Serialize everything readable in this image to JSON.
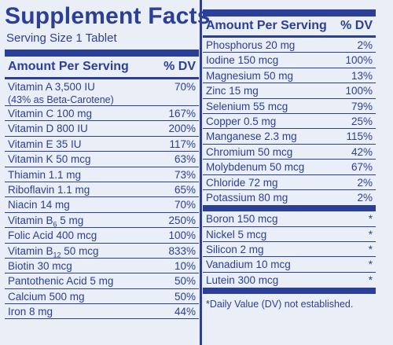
{
  "title": "Supplement Facts",
  "serving": "Serving Size 1 Tablet",
  "header": {
    "amount": "Amount Per Serving",
    "dv": "% DV"
  },
  "left_rows": [
    {
      "name": "Vitamin A 3,500 IU",
      "sub": "(43% as Beta-Carotene)",
      "dv": "70%"
    },
    {
      "name": "Vitamin C 100 mg",
      "dv": "167%"
    },
    {
      "name": "Vitamin D 800 IU",
      "dv": "200%"
    },
    {
      "name": "Vitamin E 35 IU",
      "dv": "117%"
    },
    {
      "name": "Vitamin K 50 mcg",
      "dv": "63%"
    },
    {
      "name": "Thiamin 1.1 mg",
      "dv": "73%"
    },
    {
      "name": "Riboflavin 1.1 mg",
      "dv": "65%"
    },
    {
      "name": "Niacin 14 mg",
      "dv": "70%"
    },
    {
      "name_pre": "Vitamin B",
      "name_sub": "6",
      "name_post": " 5 mg",
      "dv": "250%"
    },
    {
      "name": "Folic Acid 400 mcg",
      "dv": "100%"
    },
    {
      "name_pre": "Vitamin B",
      "name_sub": "12",
      "name_post": " 50 mcg",
      "dv": "833%"
    },
    {
      "name": "Biotin 30 mcg",
      "dv": "10%"
    },
    {
      "name": "Pantothenic Acid 5 mg",
      "dv": "50%"
    },
    {
      "name": "Calcium 500 mg",
      "dv": "50%"
    },
    {
      "name": "Iron 8 mg",
      "dv": "44%"
    }
  ],
  "right_rows_a": [
    {
      "name": "Phosphorus 20 mg",
      "dv": "2%"
    },
    {
      "name": "Iodine 150 mcg",
      "dv": "100%"
    },
    {
      "name": "Magnesium 50 mg",
      "dv": "13%"
    },
    {
      "name": "Zinc 15 mg",
      "dv": "100%"
    },
    {
      "name": "Selenium 55 mcg",
      "dv": "79%"
    },
    {
      "name": "Copper 0.5 mg",
      "dv": "25%"
    },
    {
      "name": "Manganese 2.3 mg",
      "dv": "115%"
    },
    {
      "name": "Chromium 50 mcg",
      "dv": "42%"
    },
    {
      "name": "Molybdenum 50 mcg",
      "dv": "67%"
    },
    {
      "name": "Chloride 72 mg",
      "dv": "2%"
    },
    {
      "name": "Potassium 80 mg",
      "dv": "2%"
    }
  ],
  "right_rows_b": [
    {
      "name": "Boron 150 mcg",
      "dv": "*"
    },
    {
      "name": "Nickel 5 mcg",
      "dv": "*"
    },
    {
      "name": "Silicon 2 mg",
      "dv": "*"
    },
    {
      "name": "Vanadium 10 mcg",
      "dv": "*"
    },
    {
      "name": "Lutein 300 mcg",
      "dv": "*"
    }
  ],
  "footnote": "*Daily Value (DV) not established."
}
